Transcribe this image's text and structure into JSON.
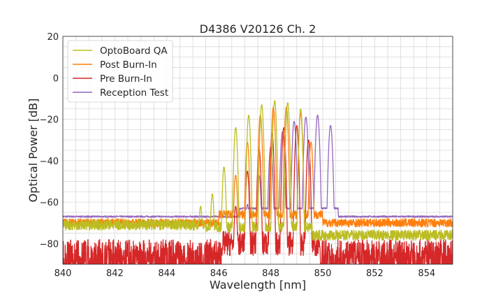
{
  "chart_data": {
    "type": "line",
    "title": "D4386 V20126 Ch. 2",
    "xlabel": "Wavelength [nm]",
    "ylabel": "Optical Power [dB]",
    "xlim": [
      840,
      855
    ],
    "ylim": [
      -90,
      20
    ],
    "xticks": [
      840,
      842,
      844,
      846,
      848,
      850,
      852,
      854
    ],
    "yticks": [
      20,
      0,
      -20,
      -40,
      -60,
      -80
    ],
    "xtick_labels": [
      "840",
      "842",
      "844",
      "846",
      "848",
      "850",
      "852",
      "854"
    ],
    "ytick_labels": [
      "20",
      "0",
      "−20",
      "−40",
      "−60",
      "−80"
    ],
    "grid": true,
    "legend_position": "top-left",
    "series": [
      {
        "name": "OptoBoard QA",
        "color": "#bcbd22",
        "noise_floor": -71,
        "noise_amp": 2.5,
        "noise_range": [
          840,
          845.5
        ],
        "peaks": [
          {
            "x": 845.3,
            "y": -62,
            "w": 0.08
          },
          {
            "x": 845.75,
            "y": -56,
            "w": 0.08
          },
          {
            "x": 846.2,
            "y": -43,
            "w": 0.08
          },
          {
            "x": 846.65,
            "y": -24,
            "w": 0.08
          },
          {
            "x": 847.15,
            "y": -18,
            "w": 0.08
          },
          {
            "x": 847.65,
            "y": -13,
            "w": 0.08
          },
          {
            "x": 848.15,
            "y": -11,
            "w": 0.08
          },
          {
            "x": 848.65,
            "y": -12,
            "w": 0.08
          },
          {
            "x": 849.15,
            "y": -15,
            "w": 0.08
          }
        ],
        "tail_floor": -76,
        "tail_range": [
          849.6,
          855
        ]
      },
      {
        "name": "Post Burn-In",
        "color": "#ff7f0e",
        "noise_floor": -70,
        "noise_amp": 2,
        "noise_range": [
          840,
          846
        ],
        "peaks": [
          {
            "x": 846.2,
            "y": -64,
            "w": 0.08
          },
          {
            "x": 846.65,
            "y": -47,
            "w": 0.08
          },
          {
            "x": 847.1,
            "y": -31,
            "w": 0.08
          },
          {
            "x": 847.6,
            "y": -18,
            "w": 0.08
          },
          {
            "x": 848.1,
            "y": -14,
            "w": 0.08
          },
          {
            "x": 848.6,
            "y": -14,
            "w": 0.08
          },
          {
            "x": 849.15,
            "y": -17,
            "w": 0.08
          },
          {
            "x": 849.55,
            "y": -31,
            "w": 0.08
          }
        ],
        "tail_floor": -70,
        "tail_range": [
          850,
          855
        ]
      },
      {
        "name": "Pre Burn-In",
        "color": "#d62728",
        "noise_floor": -84,
        "noise_amp": 6,
        "noise_range": [
          840,
          846.1
        ],
        "peaks": [
          {
            "x": 846.65,
            "y": -62,
            "w": 0.08
          },
          {
            "x": 847.1,
            "y": -45,
            "w": 0.08
          },
          {
            "x": 847.55,
            "y": -34,
            "w": 0.08
          },
          {
            "x": 848.05,
            "y": -27,
            "w": 0.08
          },
          {
            "x": 848.5,
            "y": -24,
            "w": 0.08
          },
          {
            "x": 849,
            "y": -23,
            "w": 0.08
          },
          {
            "x": 849.45,
            "y": -30,
            "w": 0.08
          }
        ],
        "tail_floor": -84,
        "tail_range": [
          849.9,
          855
        ]
      },
      {
        "name": "Reception Test",
        "color": "#9467bd",
        "noise_floor": -67,
        "noise_amp": 0.4,
        "noise_range": [
          840,
          846.8
        ],
        "peaks": [
          {
            "x": 847.1,
            "y": -61,
            "w": 0.09
          },
          {
            "x": 847.55,
            "y": -47,
            "w": 0.09
          },
          {
            "x": 848.0,
            "y": -33,
            "w": 0.09
          },
          {
            "x": 848.45,
            "y": -26,
            "w": 0.09
          },
          {
            "x": 848.9,
            "y": -21,
            "w": 0.09
          },
          {
            "x": 849.35,
            "y": -19,
            "w": 0.09
          },
          {
            "x": 849.8,
            "y": -18,
            "w": 0.09
          },
          {
            "x": 850.3,
            "y": -23,
            "w": 0.09
          }
        ],
        "tail_floor": -67,
        "tail_range": [
          850.6,
          855
        ]
      }
    ]
  }
}
